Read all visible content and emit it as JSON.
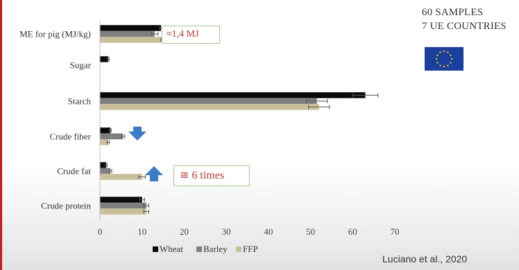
{
  "info": {
    "samples": "60 SAMPLES",
    "countries": "7 UE COUNTRIES"
  },
  "icons": {
    "flag": "eu-flag-icon",
    "down_arrow": "arrow-down-icon",
    "up_arrow": "arrow-up-icon"
  },
  "callouts": {
    "me_difference": "≈1,4 MJ",
    "fat_difference": "≅ 6 times"
  },
  "citation": "Luciano et al., 2020",
  "colors": {
    "wheat": "#0a0a0a",
    "barley": "#7f7f7f",
    "ffp": "#c9c09a",
    "arrow": "#3a7cc6",
    "callout_text": "#d23333",
    "callout_border": "#9fd18b",
    "eu_blue": "#1a3f9e",
    "eu_star": "#ffd200"
  },
  "chart_data": {
    "type": "bar",
    "orientation": "horizontal",
    "categories": [
      "ME for pig (MJ/kg)",
      "Sugar",
      "Starch",
      "Crude fiber",
      "Crude fat",
      "Crude protein"
    ],
    "series": [
      {
        "name": "Wheat",
        "values": [
          14.5,
          2.0,
          63.0,
          2.5,
          1.5,
          10.0
        ],
        "errors": [
          0.3,
          0.2,
          3.0,
          0.2,
          0.2,
          0.6
        ]
      },
      {
        "name": "Barley",
        "values": [
          13.0,
          null,
          51.5,
          5.5,
          2.5,
          11.0
        ],
        "errors": [
          0.8,
          null,
          2.5,
          0.4,
          0.3,
          0.6
        ]
      },
      {
        "name": "FFP",
        "values": [
          15.5,
          null,
          52.0,
          2.0,
          10.0,
          11.0
        ],
        "errors": [
          1.0,
          null,
          2.5,
          0.3,
          0.8,
          0.6
        ]
      }
    ],
    "xlim": [
      0,
      70
    ],
    "xticks": [
      0,
      10,
      20,
      30,
      40,
      50,
      60,
      70
    ],
    "grid": false,
    "legend_position": "bottom"
  }
}
